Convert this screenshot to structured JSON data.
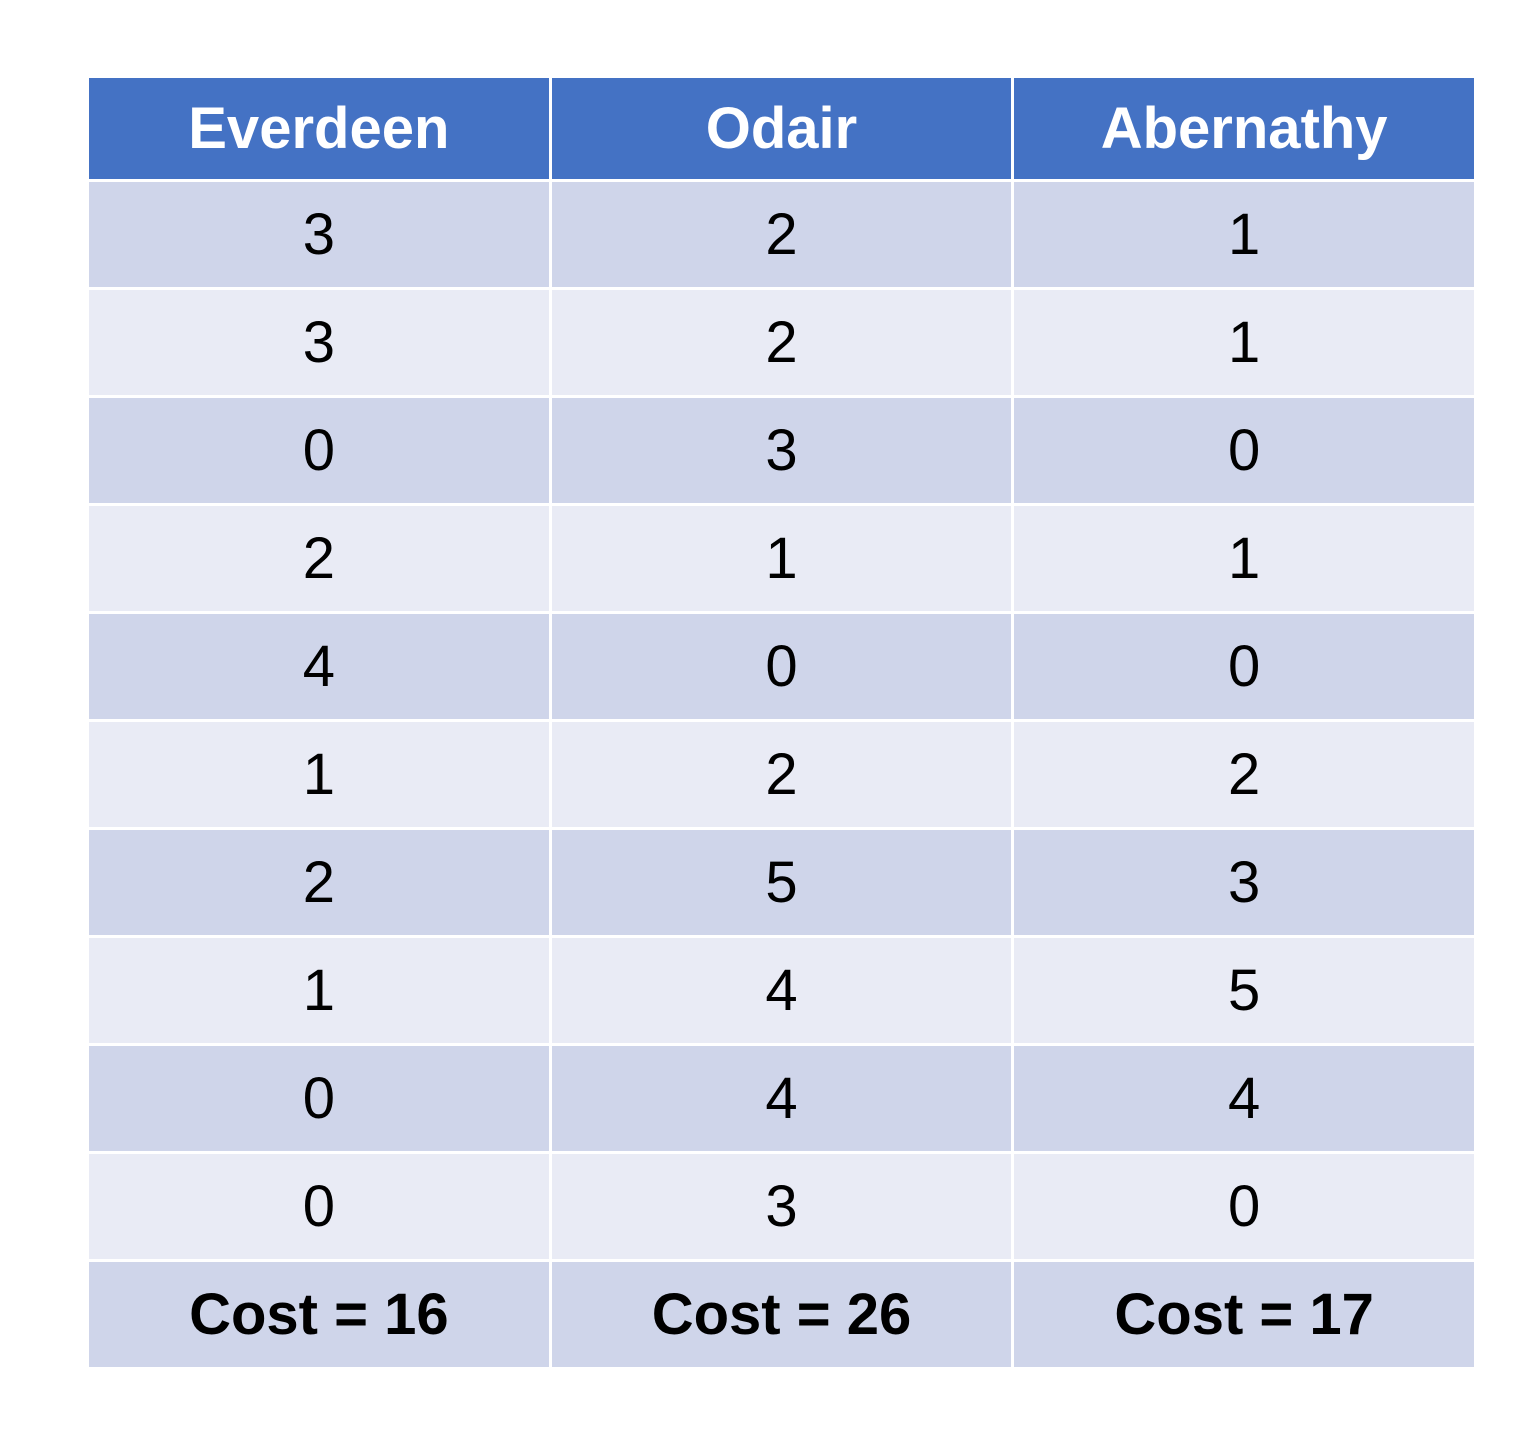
{
  "table": {
    "headers": [
      "Everdeen",
      "Odair",
      "Abernathy"
    ],
    "rows": [
      [
        "3",
        "2",
        "1"
      ],
      [
        "3",
        "2",
        "1"
      ],
      [
        "0",
        "3",
        "0"
      ],
      [
        "2",
        "1",
        "1"
      ],
      [
        "4",
        "0",
        "0"
      ],
      [
        "1",
        "2",
        "2"
      ],
      [
        "2",
        "5",
        "3"
      ],
      [
        "1",
        "4",
        "5"
      ],
      [
        "0",
        "4",
        "4"
      ],
      [
        "0",
        "3",
        "0"
      ]
    ],
    "totals": [
      "Cost = 16",
      "Cost = 26",
      "Cost = 17"
    ]
  },
  "colors": {
    "header_bg": "#4472c4",
    "header_text": "#ffffff",
    "row_dark": "#cfd5ea",
    "row_light": "#e9ebf5"
  }
}
